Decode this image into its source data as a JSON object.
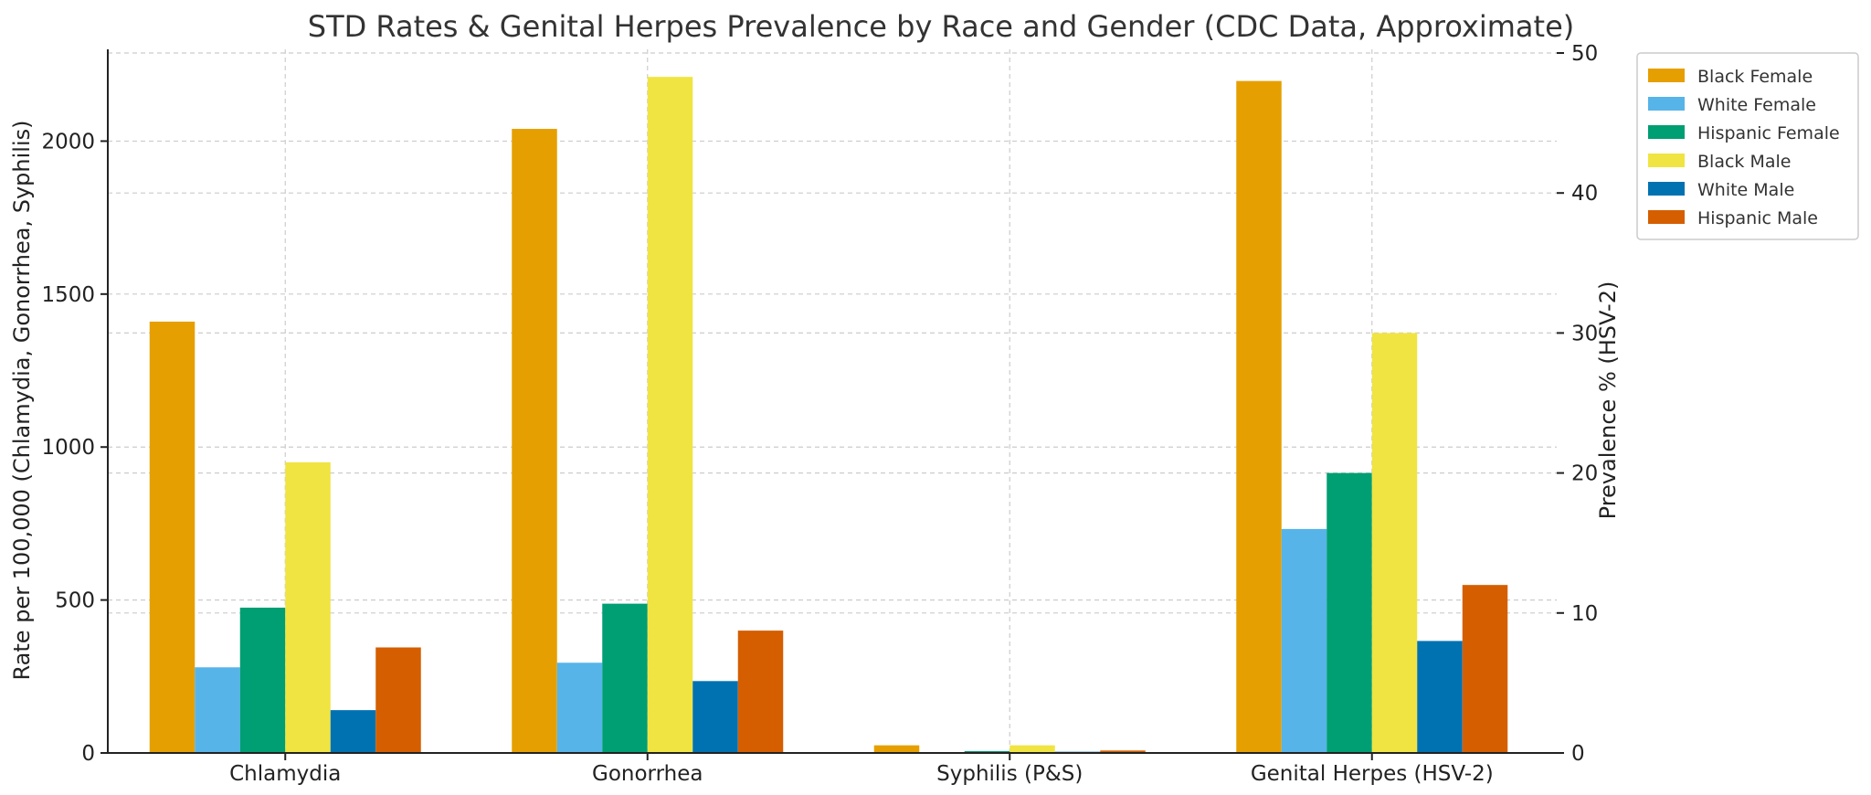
{
  "chart_data": {
    "type": "bar",
    "title": "STD Rates & Genital Herpes Prevalence by Race and Gender (CDC Data, Approximate)",
    "ylabel_left": "Rate per 100,000 (Chlamydia, Gonorrhea, Syphilis)",
    "ylabel_right": "Prevalence % (HSV-2)",
    "categories": [
      "Chlamydia",
      "Gonorrhea",
      "Syphilis (P&S)",
      "Genital Herpes (HSV-2)"
    ],
    "ylim_left": [
      0,
      2300
    ],
    "ylim_right": [
      0,
      50
    ],
    "yticks_left": [
      "0",
      "500",
      "1000",
      "1500",
      "2000"
    ],
    "yticks_right": [
      "0",
      "10",
      "20",
      "30",
      "40",
      "50"
    ],
    "grid": true,
    "legend_position": "upper-right-outside",
    "axis_for_category": [
      "left",
      "left",
      "left",
      "right"
    ],
    "series": [
      {
        "name": "Black Female",
        "color": "#E69F00",
        "values": [
          1410,
          2040,
          25,
          48
        ]
      },
      {
        "name": "White Female",
        "color": "#56B4E9",
        "values": [
          280,
          295,
          3,
          16
        ]
      },
      {
        "name": "Hispanic Female",
        "color": "#009E73",
        "values": [
          475,
          488,
          6,
          20
        ]
      },
      {
        "name": "Black Male",
        "color": "#F0E442",
        "values": [
          950,
          2210,
          25,
          30
        ]
      },
      {
        "name": "White Male",
        "color": "#0072B2",
        "values": [
          140,
          235,
          4,
          8
        ]
      },
      {
        "name": "Hispanic Male",
        "color": "#D55E00",
        "values": [
          345,
          400,
          8,
          12
        ]
      }
    ]
  }
}
